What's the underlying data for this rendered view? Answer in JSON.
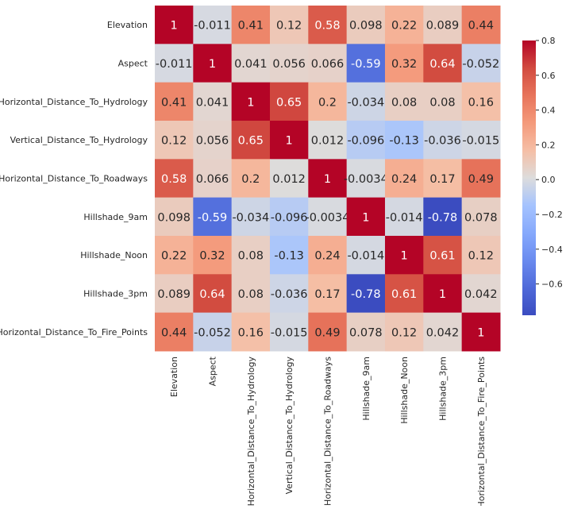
{
  "chart_data": {
    "type": "heatmap",
    "title": "",
    "xlabel": "",
    "ylabel": "",
    "colormap": "coolwarm",
    "color_range": [
      -0.78,
      0.8
    ],
    "colorbar_ticks": [
      "0.8",
      "0.6",
      "0.4",
      "0.2",
      "0.0",
      "−0.2",
      "−0.4",
      "−0.6"
    ],
    "colorbar_tick_values": [
      0.8,
      0.6,
      0.4,
      0.2,
      0.0,
      -0.2,
      -0.4,
      -0.6
    ],
    "labels": [
      "Elevation",
      "Aspect",
      "Horizontal_Distance_To_Hydrology",
      "Vertical_Distance_To_Hydrology",
      "Horizontal_Distance_To_Roadways",
      "Hillshade_9am",
      "Hillshade_Noon",
      "Hillshade_3pm",
      "Horizontal_Distance_To_Fire_Points"
    ],
    "annotations": [
      [
        "1",
        "-0.011",
        "0.41",
        "0.12",
        "0.58",
        "0.098",
        "0.22",
        "0.089",
        "0.44"
      ],
      [
        "-0.011",
        "1",
        "0.041",
        "0.056",
        "0.066",
        "-0.59",
        "0.32",
        "0.64",
        "-0.052"
      ],
      [
        "0.41",
        "0.041",
        "1",
        "0.65",
        "0.2",
        "-0.034",
        "0.08",
        "0.08",
        "0.16"
      ],
      [
        "0.12",
        "0.056",
        "0.65",
        "1",
        "0.012",
        "-0.096",
        "-0.13",
        "-0.036",
        "-0.015"
      ],
      [
        "0.58",
        "0.066",
        "0.2",
        "0.012",
        "1",
        "-0.0034",
        "0.24",
        "0.17",
        "0.49"
      ],
      [
        "0.098",
        "-0.59",
        "-0.034",
        "-0.096",
        "-0.0034",
        "1",
        "-0.014",
        "-0.78",
        "0.078"
      ],
      [
        "0.22",
        "0.32",
        "0.08",
        "-0.13",
        "0.24",
        "-0.014",
        "1",
        "0.61",
        "0.12"
      ],
      [
        "0.089",
        "0.64",
        "0.08",
        "-0.036",
        "0.17",
        "-0.78",
        "0.61",
        "1",
        "0.042"
      ],
      [
        "0.44",
        "-0.052",
        "0.16",
        "-0.015",
        "0.49",
        "0.078",
        "0.12",
        "0.042",
        "1"
      ]
    ],
    "values": [
      [
        1,
        -0.011,
        0.41,
        0.12,
        0.58,
        0.098,
        0.22,
        0.089,
        0.44
      ],
      [
        -0.011,
        1,
        0.041,
        0.056,
        0.066,
        -0.59,
        0.32,
        0.64,
        -0.052
      ],
      [
        0.41,
        0.041,
        1,
        0.65,
        0.2,
        -0.034,
        0.08,
        0.08,
        0.16
      ],
      [
        0.12,
        0.056,
        0.65,
        1,
        0.012,
        -0.096,
        -0.13,
        -0.036,
        -0.015
      ],
      [
        0.58,
        0.066,
        0.2,
        0.012,
        1,
        -0.0034,
        0.24,
        0.17,
        0.49
      ],
      [
        0.098,
        -0.59,
        -0.034,
        -0.096,
        -0.0034,
        1,
        -0.014,
        -0.78,
        0.078
      ],
      [
        0.22,
        0.32,
        0.08,
        -0.13,
        0.24,
        -0.014,
        1,
        0.61,
        0.12
      ],
      [
        0.089,
        0.64,
        0.08,
        -0.036,
        0.17,
        -0.78,
        0.61,
        1,
        0.042
      ],
      [
        0.44,
        -0.052,
        0.16,
        -0.015,
        0.49,
        0.078,
        0.12,
        0.042,
        1
      ]
    ],
    "legend": "colorbar right"
  }
}
